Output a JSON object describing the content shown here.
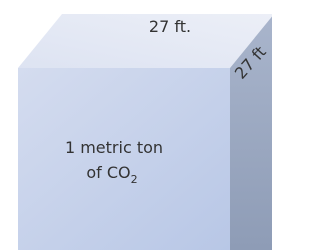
{
  "dimensions": {
    "top": "27 ft.",
    "side": "27 ft"
  },
  "content": {
    "line1": "1 metric ton",
    "line2": "of CO",
    "subscript": "2"
  }
}
